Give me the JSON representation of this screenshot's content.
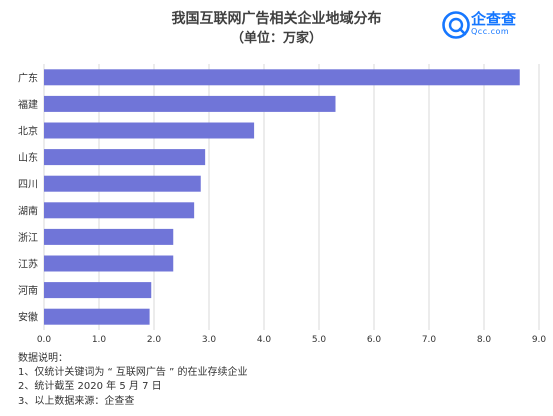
{
  "header": {
    "title": "我国互联网广告相关企业地域分布",
    "subtitle": "（单位：万家）"
  },
  "brand": {
    "name": "企查查",
    "domain": "Qcc.com",
    "color": "#1677ff",
    "icon": "magnifier-q-icon"
  },
  "chart_data": {
    "type": "bar",
    "orientation": "horizontal",
    "title": "我国互联网广告相关企业地域分布",
    "subtitle": "（单位：万家）",
    "categories": [
      "广东",
      "福建",
      "北京",
      "山东",
      "四川",
      "湖南",
      "浙江",
      "江苏",
      "河南",
      "安徽"
    ],
    "values": [
      8.65,
      5.3,
      3.82,
      2.93,
      2.85,
      2.73,
      2.35,
      2.35,
      1.95,
      1.92
    ],
    "xlim": [
      0,
      9
    ],
    "xticks": [
      "0.0",
      "1.0",
      "2.0",
      "3.0",
      "4.0",
      "5.0",
      "6.0",
      "7.0",
      "8.0",
      "9.0"
    ],
    "grid": true,
    "bar_color": "#7075d8",
    "grid_color": "#d9d9d9"
  },
  "notes": {
    "heading": "数据说明：",
    "items": [
      "1、仅统计关键词为 “ 互联网广告 ” 的在业存续企业",
      "2、统计截至 2020 年 5 月 7 日",
      "3、以上数据来源：企查查"
    ]
  }
}
